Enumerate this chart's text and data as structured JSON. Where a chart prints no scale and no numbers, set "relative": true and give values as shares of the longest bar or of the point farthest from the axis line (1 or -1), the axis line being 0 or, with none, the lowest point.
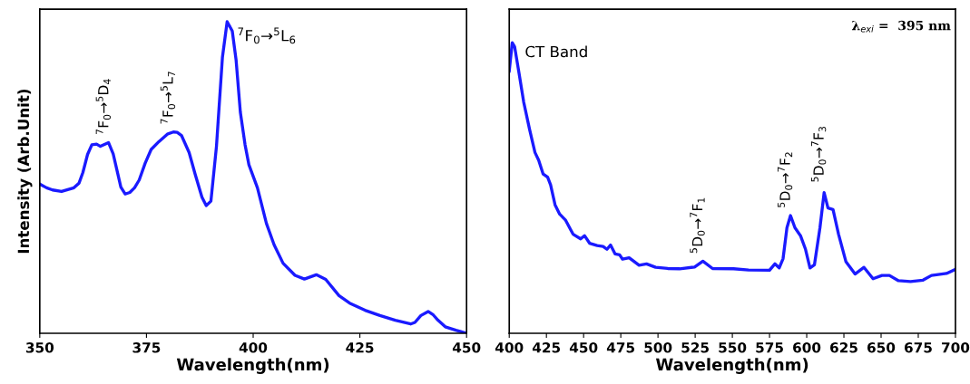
{
  "chart_data": [
    {
      "type": "line",
      "relative": true,
      "tick_labels": "x",
      "xlabel": "Wavelength(nm)",
      "ylabel": "Intensity (Arb.Unit)",
      "xlim": [
        350,
        450
      ],
      "xticks": [
        350,
        375,
        400,
        425,
        450
      ],
      "grid": false,
      "legend": false,
      "marker": "none",
      "line_style": "solid",
      "series": [
        {
          "color": "#1a1aff",
          "x": [
            350,
            351.6,
            353,
            355.1,
            358,
            359.2,
            360.1,
            361.2,
            362.2,
            363.3,
            364.2,
            366.1,
            367.2,
            369.0,
            370.0,
            371.1,
            372.2,
            373.3,
            374.7,
            376.1,
            377.9,
            380.0,
            381.3,
            382.2,
            383.2,
            385.0,
            386.4,
            388.0,
            389.0,
            390.1,
            391.4,
            392.8,
            393.9,
            395.1,
            396.0,
            397.0,
            398.1,
            399.0,
            401.0,
            403.1,
            404.9,
            407.0,
            409.8,
            412.0,
            414.8,
            417.0,
            420.1,
            422.6,
            426.2,
            429.7,
            433.3,
            436.9,
            437.9,
            439.3,
            441.0,
            442.2,
            443.3,
            445.0,
            447.5,
            450.0
          ],
          "values": [
            0.479,
            0.467,
            0.46,
            0.455,
            0.467,
            0.482,
            0.516,
            0.574,
            0.605,
            0.607,
            0.6,
            0.612,
            0.576,
            0.469,
            0.447,
            0.452,
            0.467,
            0.492,
            0.546,
            0.59,
            0.615,
            0.64,
            0.646,
            0.645,
            0.635,
            0.58,
            0.511,
            0.437,
            0.41,
            0.424,
            0.6,
            0.886,
            1.0,
            0.97,
            0.877,
            0.709,
            0.605,
            0.541,
            0.467,
            0.353,
            0.284,
            0.225,
            0.186,
            0.174,
            0.188,
            0.173,
            0.121,
            0.097,
            0.074,
            0.057,
            0.042,
            0.03,
            0.035,
            0.057,
            0.07,
            0.059,
            0.042,
            0.021,
            0.01,
            0.0
          ]
        }
      ],
      "annotations": [
        {
          "text": "$^{7}$F$_{0}$→$^{5}$D$_{4}$",
          "x": 365,
          "y": 0.612
        },
        {
          "text": "$^{7}$F$_{0}$→$^{5}$L$_{7}$",
          "x": 381.3,
          "y": 0.646
        },
        {
          "text": "$^{7}$F$_{0}$→$^{5}$L$_{6}$",
          "x": 393.9,
          "y": 1.0
        }
      ]
    },
    {
      "type": "line",
      "relative": true,
      "tick_labels": "x",
      "xlabel": "Wavelength(nm)",
      "xlim": [
        400,
        700
      ],
      "xticks": [
        400,
        425,
        450,
        475,
        500,
        525,
        550,
        575,
        600,
        625,
        650,
        675,
        700
      ],
      "grid": false,
      "legend": false,
      "marker": "none",
      "line_style": "solid",
      "series": [
        {
          "color": "#1a1aff",
          "x": [
            400,
            402,
            403.6,
            406.7,
            409.7,
            413.7,
            417.3,
            419.8,
            422.8,
            425.8,
            427.8,
            430.8,
            433.9,
            437.9,
            442.9,
            448.0,
            450.6,
            454.0,
            459.1,
            463.1,
            465.7,
            468.1,
            471.2,
            474.2,
            476.2,
            480.6,
            487.3,
            492.3,
            498.4,
            506.5,
            514.5,
            524.6,
            530.2,
            536.7,
            550.8,
            560.9,
            575.0,
            578.6,
            581.5,
            584.1,
            586.7,
            589.1,
            592.1,
            595.8,
            599.2,
            602.2,
            605.2,
            608.9,
            611.7,
            614.3,
            617.7,
            621.4,
            626.4,
            632.5,
            638.5,
            644.6,
            650.6,
            655.6,
            661.7,
            669.8,
            678.2,
            683.9,
            694.0,
            700.0
          ],
          "values": [
            0.902,
            1.0,
            0.986,
            0.891,
            0.796,
            0.701,
            0.622,
            0.595,
            0.548,
            0.537,
            0.511,
            0.442,
            0.41,
            0.389,
            0.341,
            0.325,
            0.336,
            0.31,
            0.302,
            0.299,
            0.289,
            0.304,
            0.273,
            0.27,
            0.255,
            0.26,
            0.234,
            0.239,
            0.227,
            0.223,
            0.222,
            0.228,
            0.248,
            0.223,
            0.222,
            0.218,
            0.217,
            0.239,
            0.225,
            0.257,
            0.363,
            0.405,
            0.363,
            0.336,
            0.289,
            0.225,
            0.236,
            0.363,
            0.484,
            0.431,
            0.426,
            0.341,
            0.246,
            0.204,
            0.227,
            0.188,
            0.199,
            0.199,
            0.181,
            0.178,
            0.183,
            0.199,
            0.206,
            0.22
          ]
        }
      ],
      "annotations": [
        {
          "text": "CT Band",
          "x": 402,
          "y": 1.0
        },
        {
          "text": "$^{5}$D$_{0}$→$^{7}$F$_{1}$",
          "x": 530.2,
          "y": 0.248
        },
        {
          "text": "$^{5}$D$_{0}$→$^{7}$F$_{2}$",
          "x": 589.1,
          "y": 0.405
        },
        {
          "text": "$^{5}$D$_{0}$→$^{7}$F$_{3}$",
          "x": 611.7,
          "y": 0.484
        },
        "λ$_{exi}$ =  395 nm"
      ]
    }
  ]
}
